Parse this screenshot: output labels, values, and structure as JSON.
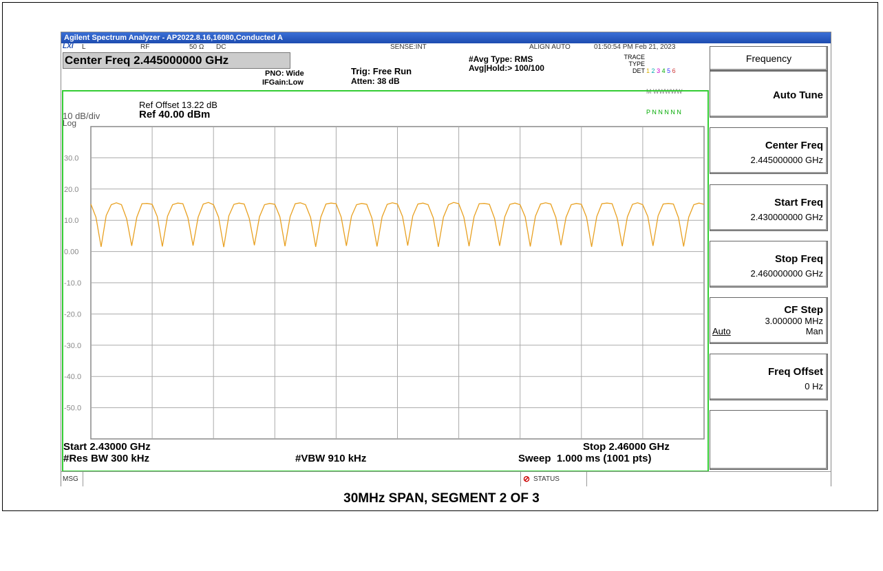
{
  "title_bar": "Agilent Spectrum Analyzer - AP2022.8.16,16080,Conducted A",
  "status_row": {
    "mode": "L",
    "input": "RF",
    "impedance": "50 Ω",
    "coupling": "DC",
    "sense": "SENSE:INT",
    "align": "ALIGN AUTO",
    "datetime": "01:50:54 PM Feb 21, 2023"
  },
  "center_freq": "Center Freq 2.445000000 GHz",
  "settings": {
    "pno": "PNO: Wide",
    "ifgain": "IFGain:Low",
    "trig": "Trig: Free Run",
    "atten": "Atten: 38 dB",
    "avg_type": "#Avg Type: RMS",
    "avg_hold": "Avg|Hold:> 100/100"
  },
  "trace_panel": {
    "trace_label": "TRACE",
    "trace_nums": [
      "1",
      "2",
      "3",
      "4",
      "5",
      "6"
    ],
    "type_label": "TYPE",
    "type_value": "M WWWWW",
    "det_label": "DET",
    "det_value": "P N N N N N"
  },
  "plot_header": {
    "ref_offset": "Ref Offset 13.22 dB",
    "ref_level": "Ref 40.00 dBm",
    "scale": "10 dB/div",
    "scale_type": "Log"
  },
  "chart_data": {
    "type": "line",
    "color": "#e8a020",
    "values": [
      15.2,
      11,
      1.5,
      11.5,
      15,
      15.6,
      15,
      10.5,
      1.8,
      11,
      15.3,
      15.4,
      15.1,
      11.2,
      1.6,
      11.3,
      15,
      15.5,
      15.3,
      10.8,
      1.9,
      11,
      15.2,
      15.7,
      15,
      11,
      1.4,
      11.4,
      15.1,
      15.5,
      15.2,
      10.6,
      2,
      11.1,
      15,
      15.4,
      15.1,
      11.1,
      1.7,
      11.2,
      15.3,
      15.6,
      15,
      10.9,
      1.5,
      11,
      15.2,
      15.5,
      15.3,
      11,
      1.8,
      11.3,
      15,
      15.4,
      15.1,
      10.7,
      1.6,
      11.1,
      15.1,
      15.6,
      15.2,
      11.2,
      1.9,
      11.4,
      15.2,
      15.5,
      15,
      10.8,
      1.5,
      11,
      15,
      15.7,
      15.3,
      11,
      1.7,
      11.2,
      15.3,
      15.4,
      15.1,
      10.6,
      1.8,
      11.1,
      15.1,
      15.5,
      15,
      11.1,
      1.6,
      11.3,
      15.2,
      15.6,
      15.2,
      10.9,
      2,
      11,
      15,
      15.4,
      15.1,
      11,
      1.5,
      11.2,
      15.3,
      15.5,
      15.3,
      10.7,
      1.7,
      11.1,
      15.1,
      15.6,
      15,
      11.2,
      1.8,
      11.4,
      15.2,
      15.4,
      15.2,
      10.8,
      1.6,
      11,
      15,
      15.5,
      15.1
    ],
    "ylim": [
      -60,
      40
    ],
    "yticks": [
      {
        "value": 30,
        "label": "30.0"
      },
      {
        "value": 20,
        "label": "20.0"
      },
      {
        "value": 10,
        "label": "10.0"
      },
      {
        "value": 0,
        "label": "0.00"
      },
      {
        "value": -10,
        "label": "-10.0"
      },
      {
        "value": -20,
        "label": "-20.0"
      },
      {
        "value": -30,
        "label": "-30.0"
      },
      {
        "value": -40,
        "label": "-40.0"
      },
      {
        "value": -50,
        "label": "-50.0"
      }
    ],
    "grid": true
  },
  "footer": {
    "start": "Start 2.43000 GHz",
    "stop": "Stop 2.46000 GHz",
    "res_bw": "#Res BW 300 kHz",
    "vbw": "#VBW 910 kHz",
    "sweep": "Sweep  1.000 ms (1001 pts)"
  },
  "status_bar": {
    "msg": "MSG",
    "status": "STATUS"
  },
  "softkeys": {
    "menu": "Frequency",
    "keys": [
      {
        "label": "Auto Tune"
      },
      {
        "label": "Center Freq",
        "value": "2.445000000 GHz"
      },
      {
        "label": "Start Freq",
        "value": "2.430000000 GHz"
      },
      {
        "label": "Stop Freq",
        "value": "2.460000000 GHz"
      },
      {
        "label": "CF Step",
        "value": "3.000000 MHz",
        "options": [
          "Auto",
          "Man"
        ]
      },
      {
        "label": "Freq Offset",
        "value": "0 Hz"
      }
    ]
  },
  "caption": "30MHz SPAN, SEGMENT 2 OF 3"
}
